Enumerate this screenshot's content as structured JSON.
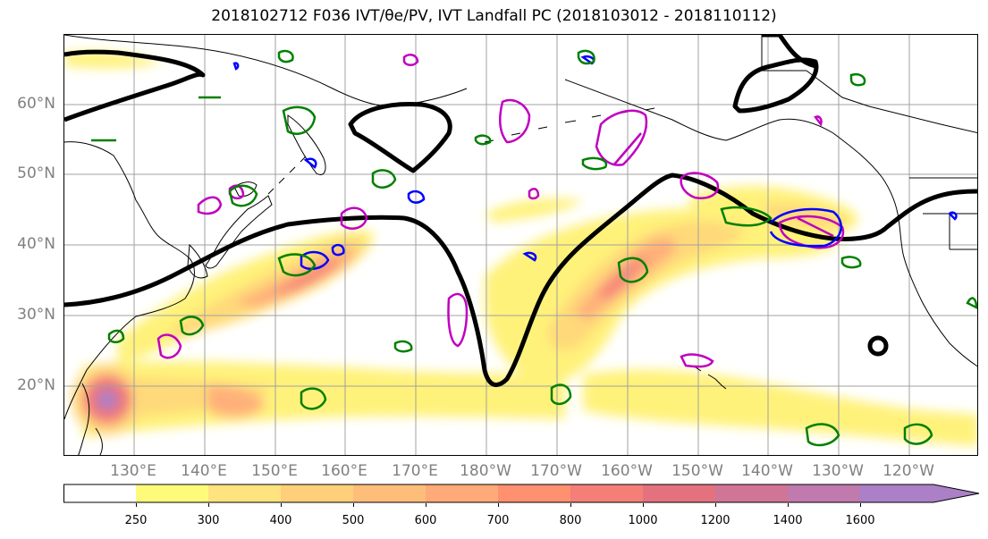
{
  "title": "2018102712 F036 IVT/θe/PV, IVT Landfall PC (2018103012 - 2018110112)",
  "lat_labels": [
    "60°N",
    "50°N",
    "40°N",
    "30°N",
    "20°N"
  ],
  "lon_labels": [
    "130°E",
    "140°E",
    "150°E",
    "160°E",
    "170°E",
    "180°W",
    "170°W",
    "160°W",
    "150°W",
    "140°W",
    "130°W",
    "120°W"
  ],
  "colorbar": {
    "ticks": [
      "250",
      "300",
      "400",
      "500",
      "600",
      "700",
      "800",
      "1000",
      "1200",
      "1400",
      "1600"
    ],
    "colors": [
      "#ffffff",
      "#fffb7a",
      "#ffe37e",
      "#ffcf7a",
      "#ffbd7a",
      "#ffaa78",
      "#ff9070",
      "#f57f77",
      "#e4727e",
      "#d07596",
      "#ab80c7"
    ],
    "extend": "max"
  },
  "colors": {
    "ivt_low": "#fff27a",
    "ivt_mid": "#ffc37a",
    "ivt_high": "#f5847a",
    "ivt_peak": "#ab80c7",
    "pv_contour": "#c000c0",
    "theta_contour": "#0000ff",
    "green_contour": "#008000",
    "pc_contour": "#000000",
    "grid": "#a0a0a0"
  }
}
